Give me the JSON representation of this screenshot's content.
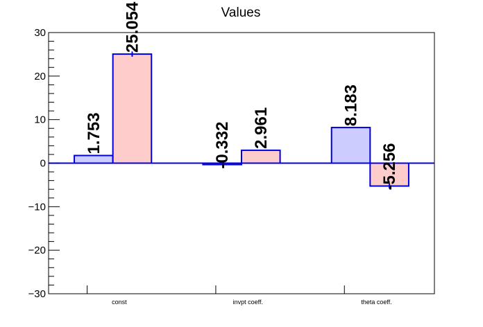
{
  "chart_data": {
    "type": "bar",
    "title": "Values",
    "xlabel": "",
    "ylabel": "",
    "categories": [
      "const",
      "invpt coeff.",
      "theta coeff."
    ],
    "ylim": [
      -30,
      30
    ],
    "yticks": [
      -30,
      -20,
      -10,
      0,
      10,
      20,
      30
    ],
    "grid": false,
    "series": [
      {
        "values": [
          1.753,
          -0.332,
          8.183
        ],
        "labels": [
          "1.753",
          "-0.332",
          "8.183"
        ],
        "errors": [
          0.0,
          0.0,
          0.0
        ],
        "fill": "#ccccff",
        "stroke": "#0000dd"
      },
      {
        "values": [
          25.054,
          2.961,
          -5.256
        ],
        "labels": [
          "25.054",
          "2.961",
          "-5.256"
        ],
        "errors": [
          0.6,
          0.0,
          0.6
        ],
        "fill": "#ffcccc",
        "stroke": "#0000dd"
      }
    ],
    "zero_line_color": "#0000dd"
  }
}
